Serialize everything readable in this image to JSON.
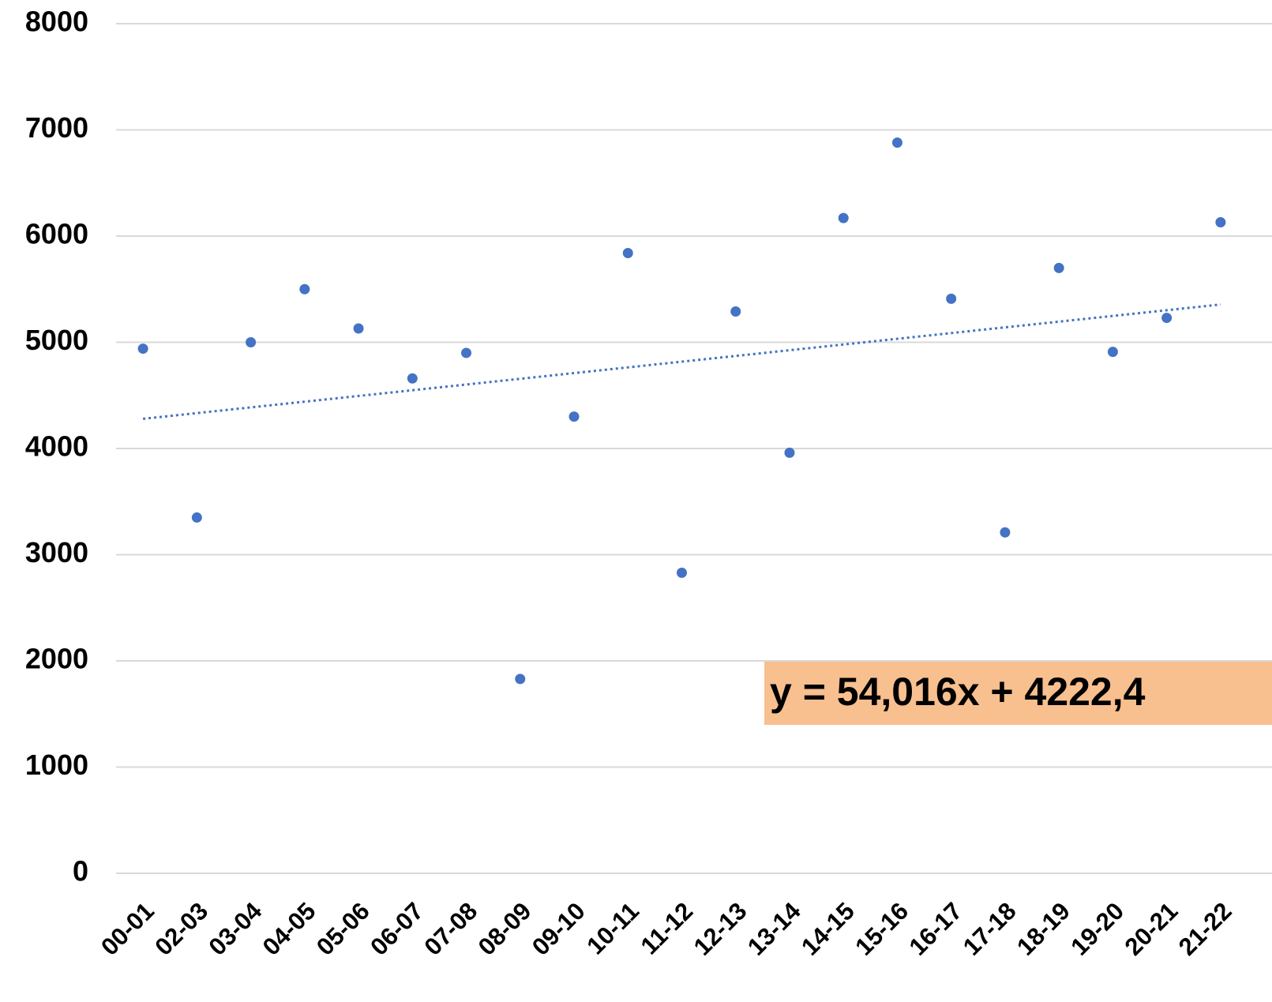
{
  "chart_data": {
    "type": "scatter",
    "categories": [
      "00-01",
      "02-03",
      "03-04",
      "04-05",
      "05-06",
      "06-07",
      "07-08",
      "08-09",
      "09-10",
      "10-11",
      "11-12",
      "12-13",
      "13-14",
      "14-15",
      "15-16",
      "16-17",
      "17-18",
      "18-19",
      "19-20",
      "20-21",
      "21-22"
    ],
    "values": [
      4940,
      3350,
      5000,
      5500,
      5130,
      4660,
      4900,
      1830,
      4300,
      5840,
      2830,
      5290,
      3960,
      6170,
      6880,
      5410,
      3210,
      5700,
      4910,
      5230,
      6130
    ],
    "color": "#4472c4",
    "ylim": [
      0,
      8000
    ],
    "yticks": [
      0,
      1000,
      2000,
      3000,
      4000,
      5000,
      6000,
      7000,
      8000
    ],
    "grid": true,
    "trendline": true,
    "annotation": "y = 54,016x + 4222,4",
    "annotation_color": "#f8bf8f"
  }
}
